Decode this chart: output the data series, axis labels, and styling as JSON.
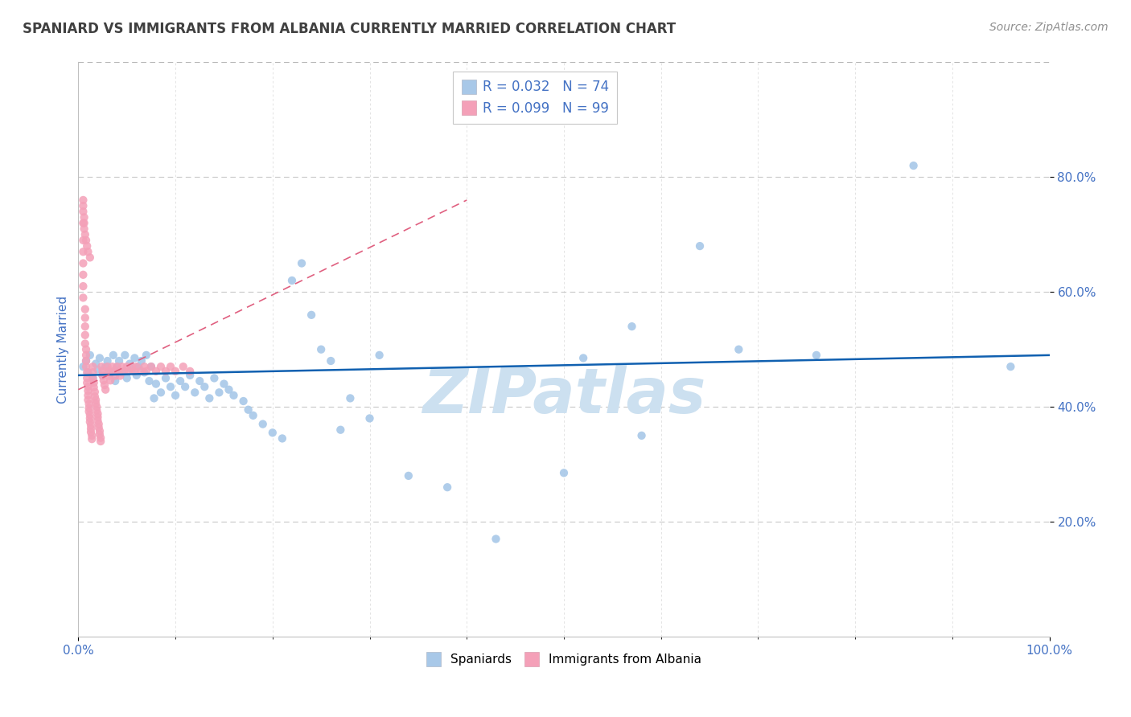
{
  "title": "SPANIARD VS IMMIGRANTS FROM ALBANIA CURRENTLY MARRIED CORRELATION CHART",
  "source_text": "Source: ZipAtlas.com",
  "ylabel": "Currently Married",
  "xlim": [
    0.0,
    1.0
  ],
  "ylim": [
    0.0,
    1.0
  ],
  "legend_r1": "R = 0.032",
  "legend_n1": "N = 74",
  "legend_r2": "R = 0.099",
  "legend_n2": "N = 99",
  "color_blue": "#a8c8e8",
  "color_pink": "#f4a0b8",
  "line_blue": "#1060b0",
  "line_pink": "#e06080",
  "title_color": "#404040",
  "source_color": "#909090",
  "tick_color": "#4472c4",
  "watermark_text": "ZIPatlas",
  "watermark_color": "#cce0f0",
  "blue_scatter_x": [
    0.005,
    0.008,
    0.01,
    0.012,
    0.015,
    0.018,
    0.02,
    0.022,
    0.025,
    0.028,
    0.03,
    0.033,
    0.036,
    0.038,
    0.04,
    0.042,
    0.045,
    0.048,
    0.05,
    0.053,
    0.055,
    0.058,
    0.06,
    0.062,
    0.065,
    0.068,
    0.07,
    0.073,
    0.075,
    0.078,
    0.08,
    0.085,
    0.09,
    0.095,
    0.1,
    0.105,
    0.11,
    0.115,
    0.12,
    0.125,
    0.13,
    0.135,
    0.14,
    0.145,
    0.15,
    0.155,
    0.16,
    0.17,
    0.175,
    0.18,
    0.19,
    0.2,
    0.21,
    0.22,
    0.23,
    0.24,
    0.25,
    0.26,
    0.27,
    0.28,
    0.3,
    0.31,
    0.34,
    0.38,
    0.43,
    0.5,
    0.52,
    0.57,
    0.58,
    0.64,
    0.68,
    0.76,
    0.86,
    0.96
  ],
  "blue_scatter_y": [
    0.47,
    0.48,
    0.46,
    0.49,
    0.45,
    0.475,
    0.465,
    0.485,
    0.455,
    0.47,
    0.48,
    0.46,
    0.49,
    0.445,
    0.47,
    0.48,
    0.46,
    0.49,
    0.45,
    0.475,
    0.465,
    0.485,
    0.455,
    0.47,
    0.48,
    0.46,
    0.49,
    0.445,
    0.47,
    0.415,
    0.44,
    0.425,
    0.45,
    0.435,
    0.42,
    0.445,
    0.435,
    0.455,
    0.425,
    0.445,
    0.435,
    0.415,
    0.45,
    0.425,
    0.44,
    0.43,
    0.42,
    0.41,
    0.395,
    0.385,
    0.37,
    0.355,
    0.345,
    0.62,
    0.65,
    0.56,
    0.5,
    0.48,
    0.36,
    0.415,
    0.38,
    0.49,
    0.28,
    0.26,
    0.17,
    0.285,
    0.485,
    0.54,
    0.35,
    0.68,
    0.5,
    0.49,
    0.82,
    0.47
  ],
  "pink_scatter_x": [
    0.005,
    0.005,
    0.005,
    0.005,
    0.005,
    0.005,
    0.005,
    0.007,
    0.007,
    0.007,
    0.007,
    0.007,
    0.008,
    0.008,
    0.008,
    0.008,
    0.009,
    0.009,
    0.009,
    0.01,
    0.01,
    0.01,
    0.01,
    0.011,
    0.011,
    0.011,
    0.012,
    0.012,
    0.012,
    0.013,
    0.013,
    0.013,
    0.014,
    0.014,
    0.015,
    0.015,
    0.015,
    0.016,
    0.016,
    0.017,
    0.017,
    0.018,
    0.018,
    0.019,
    0.019,
    0.02,
    0.02,
    0.02,
    0.021,
    0.021,
    0.022,
    0.022,
    0.023,
    0.023,
    0.024,
    0.025,
    0.025,
    0.026,
    0.027,
    0.028,
    0.03,
    0.031,
    0.032,
    0.033,
    0.035,
    0.036,
    0.038,
    0.04,
    0.041,
    0.043,
    0.045,
    0.047,
    0.05,
    0.052,
    0.055,
    0.058,
    0.06,
    0.065,
    0.068,
    0.07,
    0.075,
    0.08,
    0.085,
    0.09,
    0.095,
    0.1,
    0.108,
    0.115,
    0.005,
    0.005,
    0.005,
    0.006,
    0.006,
    0.006,
    0.007,
    0.008,
    0.009,
    0.01,
    0.012
  ],
  "pink_scatter_y": [
    0.72,
    0.69,
    0.67,
    0.65,
    0.63,
    0.61,
    0.59,
    0.57,
    0.555,
    0.54,
    0.525,
    0.51,
    0.5,
    0.49,
    0.48,
    0.47,
    0.46,
    0.45,
    0.442,
    0.435,
    0.428,
    0.42,
    0.412,
    0.405,
    0.398,
    0.392,
    0.386,
    0.38,
    0.374,
    0.368,
    0.362,
    0.356,
    0.35,
    0.344,
    0.47,
    0.46,
    0.45,
    0.442,
    0.434,
    0.426,
    0.418,
    0.412,
    0.406,
    0.4,
    0.394,
    0.388,
    0.382,
    0.376,
    0.37,
    0.364,
    0.358,
    0.352,
    0.346,
    0.34,
    0.47,
    0.462,
    0.454,
    0.446,
    0.438,
    0.43,
    0.47,
    0.462,
    0.454,
    0.446,
    0.47,
    0.462,
    0.454,
    0.47,
    0.462,
    0.454,
    0.47,
    0.462,
    0.47,
    0.462,
    0.47,
    0.462,
    0.47,
    0.462,
    0.47,
    0.462,
    0.47,
    0.462,
    0.47,
    0.462,
    0.47,
    0.462,
    0.47,
    0.462,
    0.75,
    0.76,
    0.74,
    0.73,
    0.72,
    0.71,
    0.7,
    0.69,
    0.68,
    0.67,
    0.66
  ],
  "blue_trend_x": [
    0.0,
    1.0
  ],
  "blue_trend_y": [
    0.455,
    0.49
  ],
  "pink_trend_x": [
    0.0,
    0.4
  ],
  "pink_trend_y": [
    0.43,
    0.76
  ]
}
